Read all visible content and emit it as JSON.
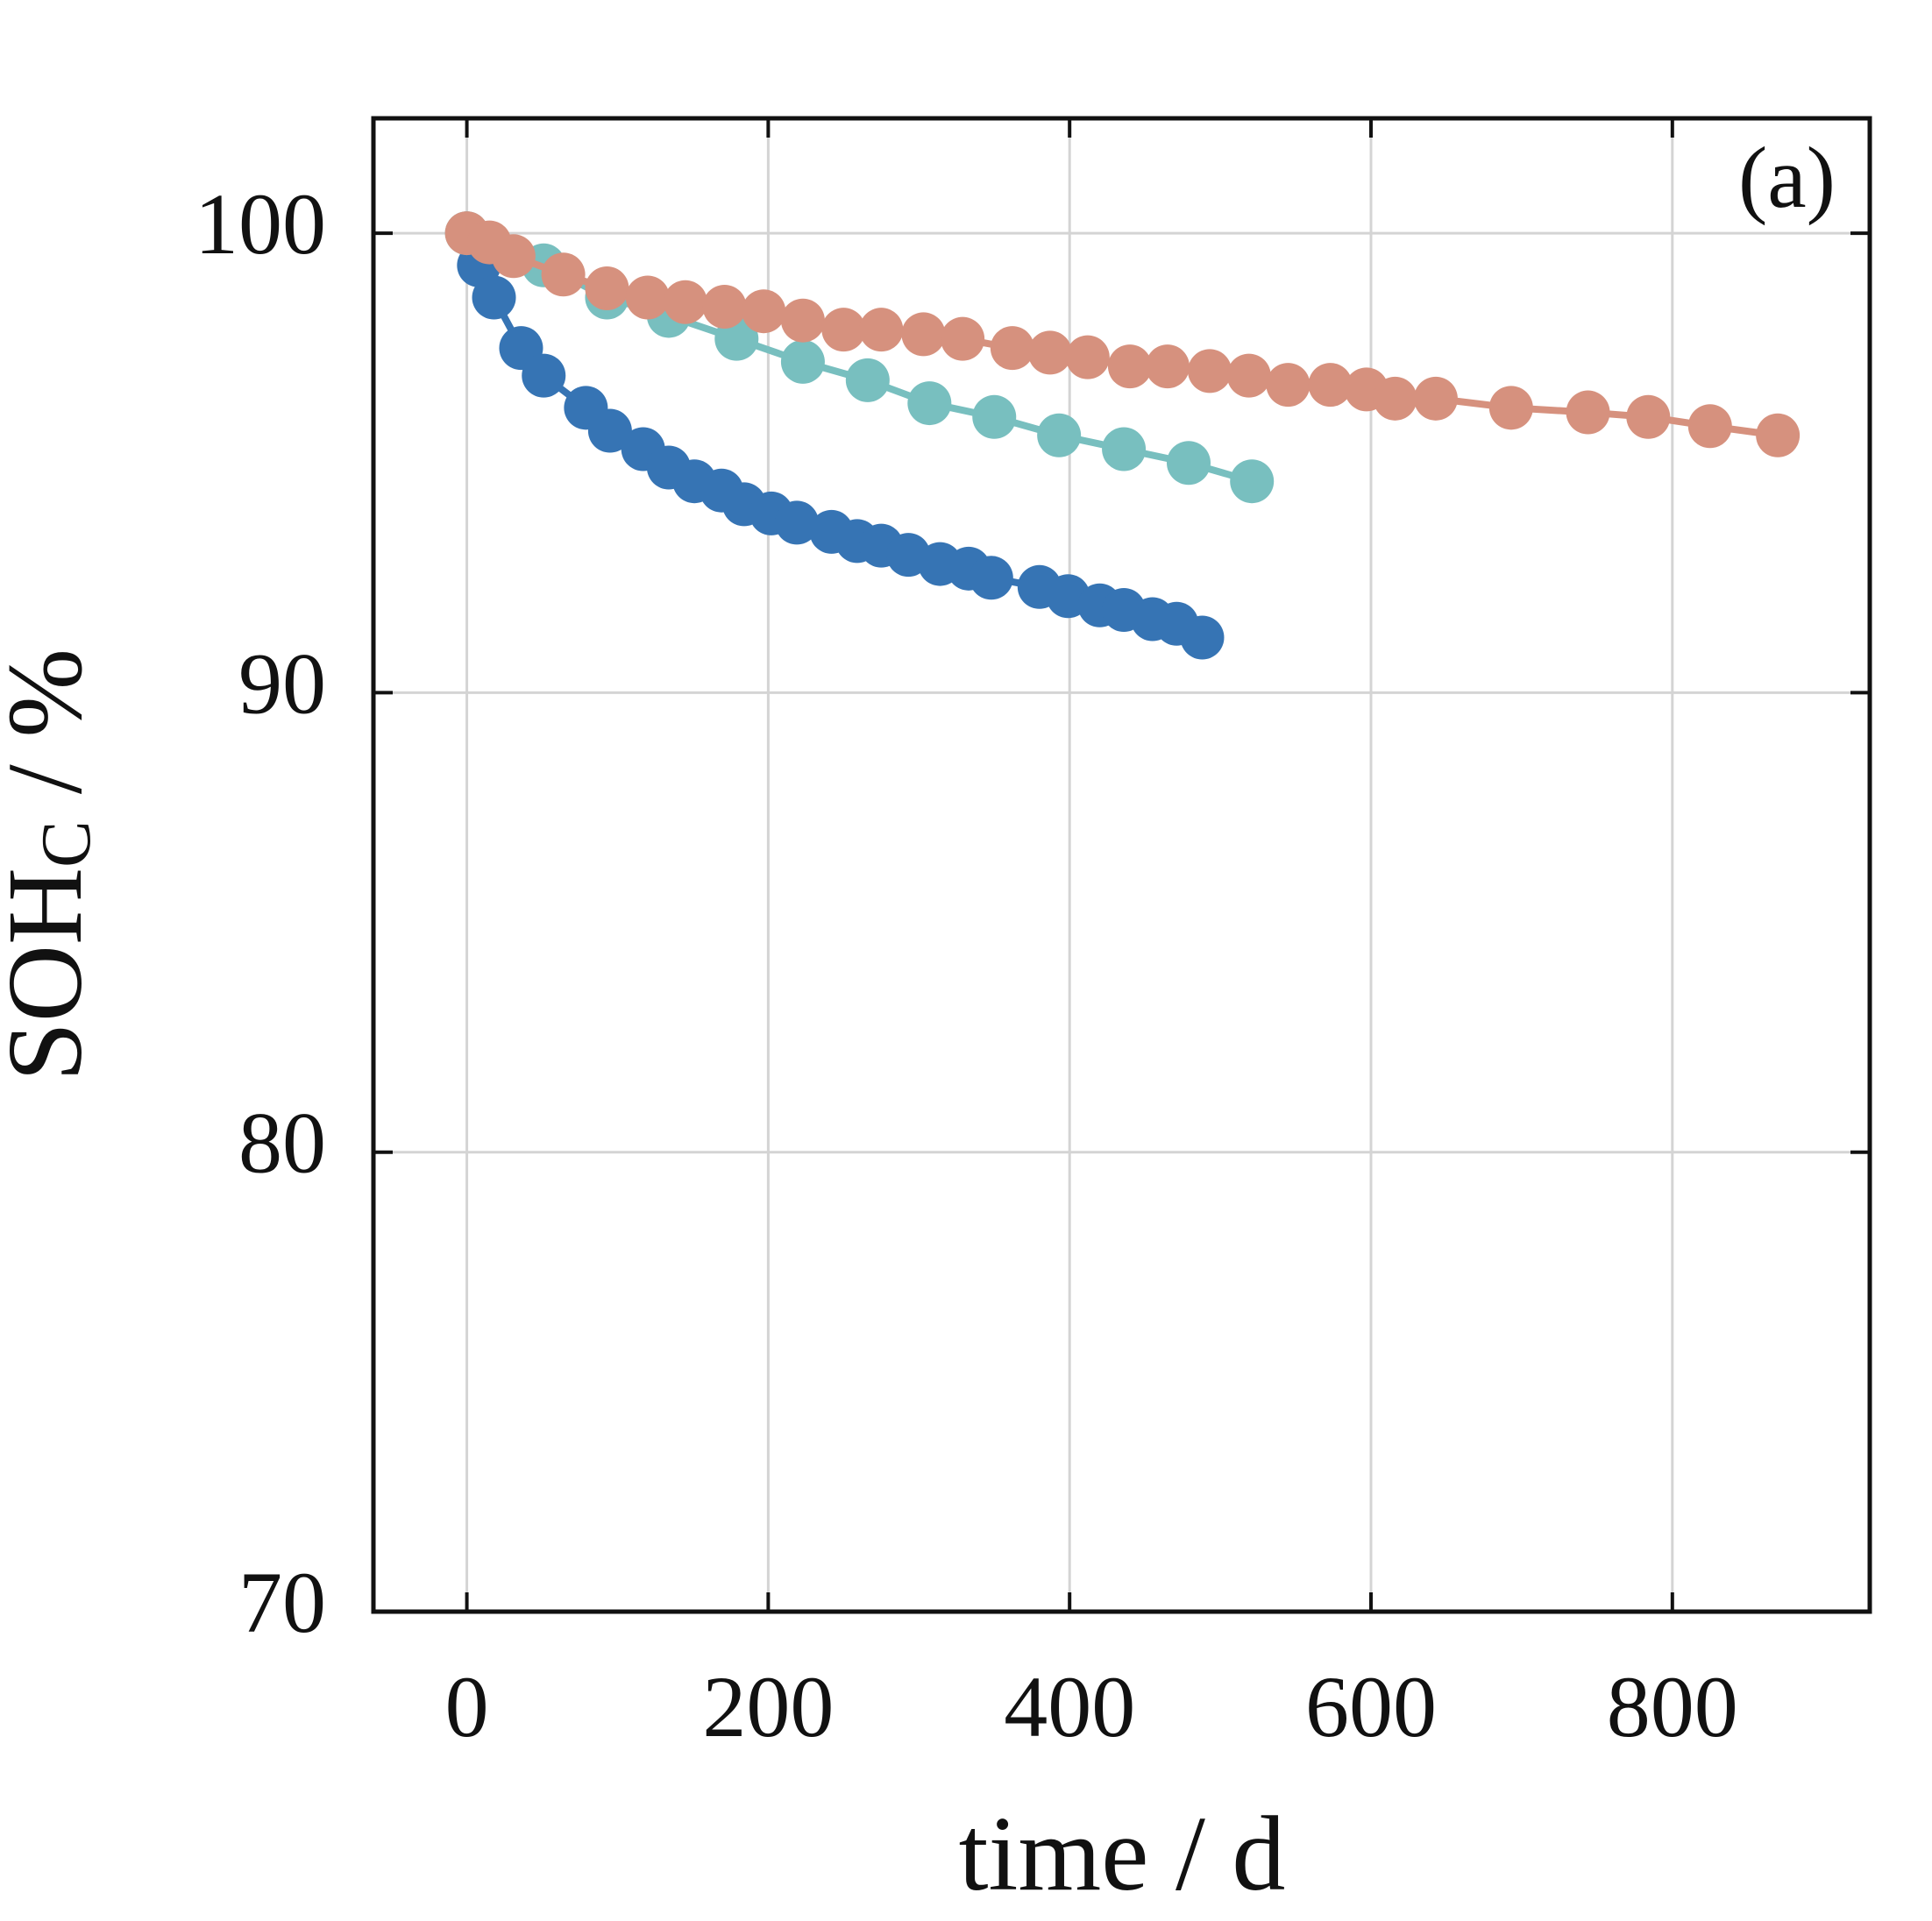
{
  "chart_data": {
    "type": "line",
    "annotation": "(a)",
    "xlabel": "time / d",
    "ylabel": "SOH",
    "ylabel_sub": "C",
    "ylabel_unit": " / %",
    "xlim": [
      -62,
      931
    ],
    "ylim": [
      70,
      102.5
    ],
    "xticks": [
      0,
      200,
      400,
      600,
      800
    ],
    "yticks": [
      70,
      80,
      90,
      100
    ],
    "grid": true,
    "series": [
      {
        "color": "#3674b4",
        "x": [
          8,
          18,
          36,
          51,
          79,
          95,
          117,
          134,
          151,
          169,
          184,
          202,
          219,
          242,
          259,
          275,
          293,
          314,
          333,
          348,
          380,
          399,
          420,
          436,
          455,
          471,
          488
        ],
        "values": [
          99.3,
          98.6,
          97.5,
          96.9,
          96.2,
          95.7,
          95.3,
          94.9,
          94.6,
          94.4,
          94.1,
          93.9,
          93.7,
          93.5,
          93.3,
          93.2,
          93.0,
          92.8,
          92.7,
          92.5,
          92.3,
          92.1,
          91.9,
          91.8,
          91.6,
          91.5,
          91.2
        ]
      },
      {
        "color": "#78bfbf",
        "x": [
          0,
          51,
          93,
          134,
          179,
          223,
          266,
          307,
          350,
          393,
          436,
          479,
          521
        ],
        "values": [
          100,
          99.3,
          98.6,
          98.2,
          97.7,
          97.2,
          96.8,
          96.3,
          96.0,
          95.6,
          95.3,
          95.0,
          94.6
        ]
      },
      {
        "color": "#d6917e",
        "x": [
          0,
          15,
          31,
          64,
          93,
          120,
          145,
          171,
          197,
          223,
          250,
          275,
          303,
          329,
          362,
          387,
          412,
          440,
          465,
          493,
          519,
          545,
          573,
          597,
          616,
          643,
          693,
          744,
          784,
          825,
          870
        ],
        "values": [
          100,
          99.8,
          99.5,
          99.1,
          98.8,
          98.6,
          98.5,
          98.4,
          98.3,
          98.1,
          97.9,
          97.9,
          97.8,
          97.7,
          97.5,
          97.4,
          97.3,
          97.1,
          97.1,
          97.0,
          96.9,
          96.7,
          96.7,
          96.6,
          96.4,
          96.4,
          96.2,
          96.1,
          96.0,
          95.8,
          95.6
        ]
      }
    ]
  }
}
